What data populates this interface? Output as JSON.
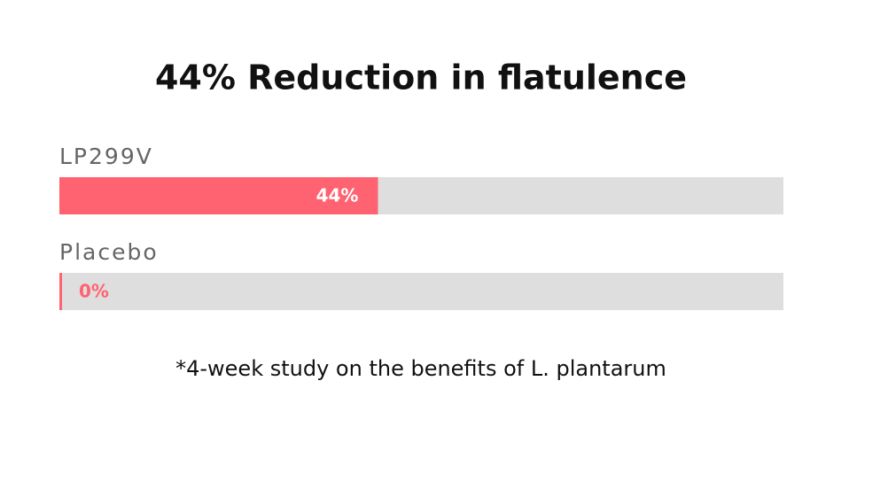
{
  "chart_data": {
    "type": "bar",
    "orientation": "horizontal",
    "title": "44% Reduction in flatulence",
    "categories": [
      "LP299V",
      "Placebo"
    ],
    "values": [
      44,
      0
    ],
    "value_labels": [
      "44%",
      "0%"
    ],
    "xlim": [
      0,
      100
    ],
    "color": "#ff6270",
    "track_color": "#dedede",
    "footnote": "*4-week study on the benefits of L. plantarum"
  }
}
